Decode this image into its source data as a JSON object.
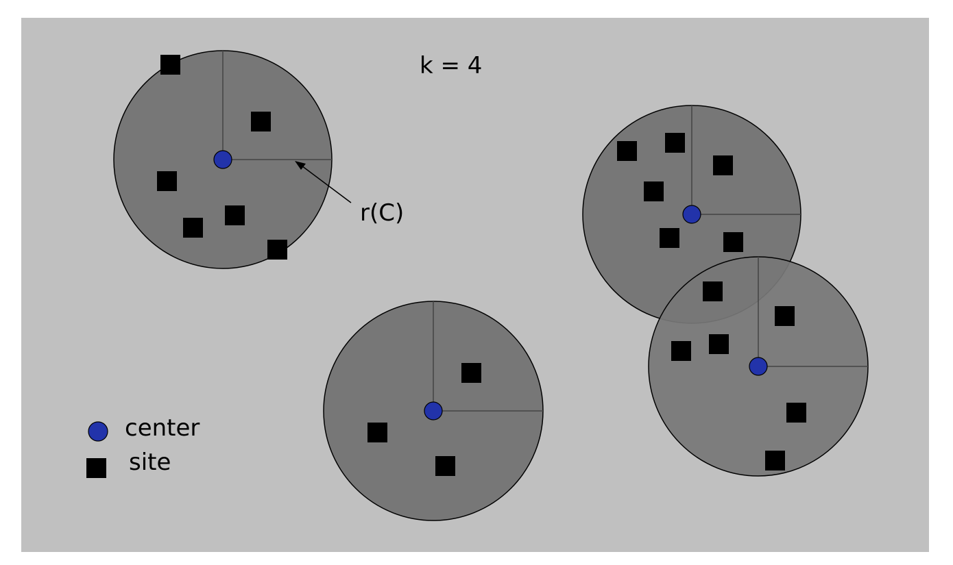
{
  "title": "k = 4",
  "radius_label": "r(C)",
  "legend": {
    "center_label": "center",
    "site_label": "site"
  },
  "colors": {
    "background": "#c0c0c0",
    "disk_fill": "#777777",
    "center_fill": "#2233aa",
    "site_fill": "#000000"
  }
}
